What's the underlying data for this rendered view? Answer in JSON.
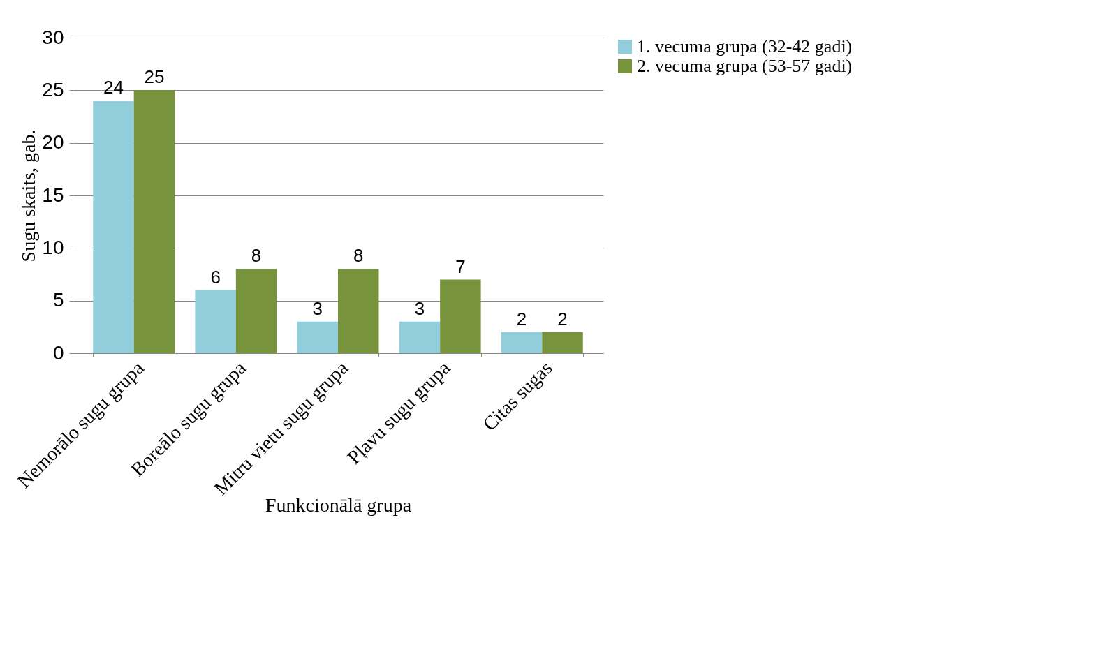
{
  "chart_data": {
    "type": "bar",
    "xlabel": "Funkcionālā grupa",
    "ylabel": "Sugu skaits, gab.",
    "categories": [
      "Nemorālo sugu grupa",
      "Boreālo sugu grupa",
      "Mitru vietu sugu grupa",
      "Pļavu sugu grupa",
      "Citas sugas"
    ],
    "series": [
      {
        "name": "1. vecuma grupa (32-42 gadi)",
        "color": "#92cddc",
        "values": [
          24,
          6,
          3,
          3,
          2
        ]
      },
      {
        "name": "2. vecuma grupa (53-57 gadi)",
        "color": "#77933c",
        "values": [
          25,
          8,
          8,
          7,
          2
        ]
      }
    ],
    "ylim": [
      0,
      30
    ],
    "yticks": [
      0,
      5,
      10,
      15,
      20,
      25,
      30
    ],
    "grid": "y",
    "legend": "right",
    "data_labels": true
  }
}
